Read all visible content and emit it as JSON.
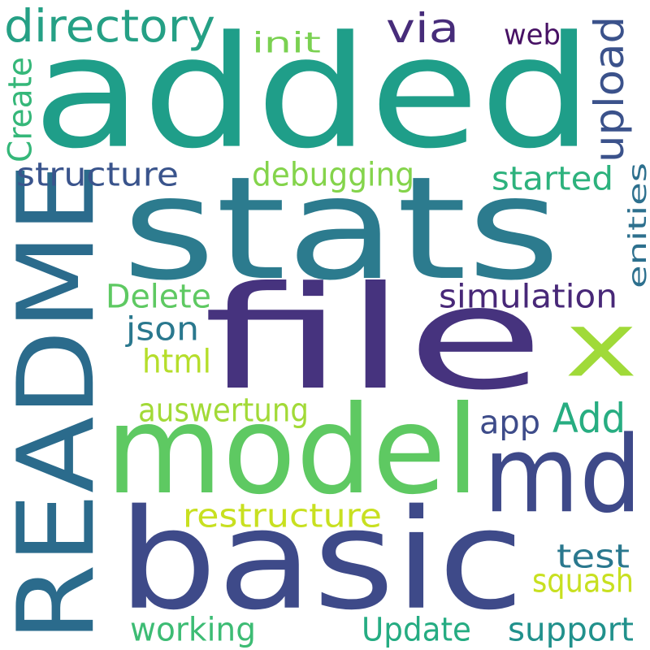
{
  "words": [
    {
      "id": "added",
      "text": "added",
      "color": "#1f9e89"
    },
    {
      "id": "stats",
      "text": "stats",
      "color": "#2c7b8e"
    },
    {
      "id": "readme",
      "text": "README",
      "color": "#2b6b8c"
    },
    {
      "id": "file",
      "text": "file",
      "color": "#46337e"
    },
    {
      "id": "model",
      "text": "model",
      "color": "#5ec962"
    },
    {
      "id": "basic",
      "text": "basic",
      "color": "#3e4a89"
    },
    {
      "id": "md",
      "text": "md",
      "color": "#3e4989"
    },
    {
      "id": "x",
      "text": "x",
      "color": "#a0da39"
    },
    {
      "id": "directory",
      "text": "directory",
      "color": "#25a085"
    },
    {
      "id": "via",
      "text": "via",
      "color": "#472c7a"
    },
    {
      "id": "init",
      "text": "init",
      "color": "#7ad151"
    },
    {
      "id": "web",
      "text": "web",
      "color": "#471164"
    },
    {
      "id": "upload",
      "text": "upload",
      "color": "#3b528b"
    },
    {
      "id": "create",
      "text": "Create",
      "color": "#35b779"
    },
    {
      "id": "structure",
      "text": "structure",
      "color": "#3a548c"
    },
    {
      "id": "debugging",
      "text": "debugging",
      "color": "#84d44b"
    },
    {
      "id": "started",
      "text": "started",
      "color": "#2db27d"
    },
    {
      "id": "enities",
      "text": "enities",
      "color": "#2d708e"
    },
    {
      "id": "delete",
      "text": "Delete",
      "color": "#5ec962"
    },
    {
      "id": "simulation",
      "text": "simulation",
      "color": "#482878"
    },
    {
      "id": "json",
      "text": "json",
      "color": "#2a788e"
    },
    {
      "id": "html",
      "text": "html",
      "color": "#b5de2b"
    },
    {
      "id": "auswertung",
      "text": "auswertung",
      "color": "#a2da37"
    },
    {
      "id": "add",
      "text": "Add",
      "color": "#27ad81"
    },
    {
      "id": "app",
      "text": "app",
      "color": "#3e4c8a"
    },
    {
      "id": "restructure",
      "text": "restructure",
      "color": "#c8e020"
    },
    {
      "id": "test",
      "text": "test",
      "color": "#2a788e"
    },
    {
      "id": "squash",
      "text": "squash",
      "color": "#c8e020"
    },
    {
      "id": "working",
      "text": "working",
      "color": "#3dbc74"
    },
    {
      "id": "update",
      "text": "Update",
      "color": "#25ac82"
    },
    {
      "id": "support",
      "text": "support",
      "color": "#21918c"
    }
  ]
}
